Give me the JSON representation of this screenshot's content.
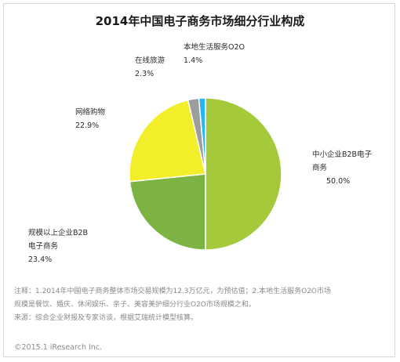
{
  "chart_data": {
    "type": "pie",
    "title": "2014年中国电子商务市场细分行业构成",
    "slices": [
      {
        "label_lines": [
          "中小企业B2B电子",
          "商务"
        ],
        "value": 50.0,
        "value_text": "50.0%",
        "color": "#a4c93b"
      },
      {
        "label_lines": [
          "规模以上企业B2B",
          "电子商务"
        ],
        "value": 23.4,
        "value_text": "23.4%",
        "color": "#7cb342"
      },
      {
        "label_lines": [
          "网络购物"
        ],
        "value": 22.9,
        "value_text": "22.9%",
        "color": "#f2ee2a"
      },
      {
        "label_lines": [
          "在线旅游"
        ],
        "value": 2.3,
        "value_text": "2.3%",
        "color": "#9d9d9d"
      },
      {
        "label_lines": [
          "本地生活服务O2O"
        ],
        "value": 1.4,
        "value_text": "1.4%",
        "color": "#29b6f6"
      }
    ]
  },
  "notes": {
    "line1": "注释：1.2014年中国电子商务整体市场交易规模为12.3万亿元，为预估值；2.本地生活服务O2O市场",
    "line2": "规模是餐饮、婚庆、休闲娱乐、亲子、美容美护细分行业O2O市场规模之和。",
    "line3": "来源：综合企业财报及专家访谈，根据艾瑞统计模型核算。"
  },
  "copyright": "©2015.1 iResearch Inc."
}
